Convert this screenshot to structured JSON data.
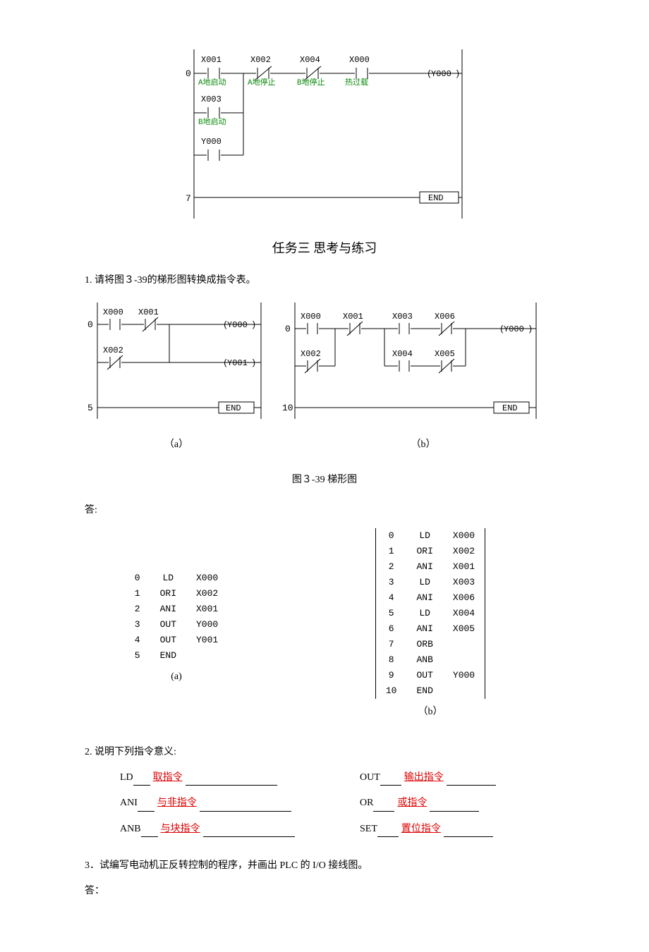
{
  "colors": {
    "green": "#0a8a0a",
    "red": "#d00000",
    "text": "#000000",
    "bg": "#ffffff",
    "line": "#000000"
  },
  "topDiagram": {
    "contacts": [
      {
        "label": "X001",
        "sub": "A地启动",
        "type": "NO"
      },
      {
        "label": "X002",
        "sub": "A地停止",
        "type": "NC"
      },
      {
        "label": "X004",
        "sub": "B地停止",
        "type": "NC"
      },
      {
        "label": "X000",
        "sub": "热过载",
        "type": "NO"
      }
    ],
    "outCoil": "Y000",
    "branches": [
      {
        "label": "X003",
        "sub": "B地启动",
        "type": "NO"
      },
      {
        "label": "Y000",
        "sub": "",
        "type": "NO"
      }
    ],
    "endLabel": "END",
    "rungLabels": [
      "0",
      "7"
    ],
    "title": "任务三    思考与练习"
  },
  "q1": {
    "text": "1. 请将图３-39的梯形图转换成指令表。",
    "figCaption": "图３-39  梯形图"
  },
  "diagA": {
    "contacts": {
      "r0": [
        "X000",
        "X001"
      ],
      "r1": [
        "X002"
      ]
    },
    "types": {
      "r0": [
        "NO",
        "NC"
      ],
      "r1": [
        "NC"
      ]
    },
    "coils": [
      "Y000",
      "Y001"
    ],
    "end": "END",
    "rungs": [
      "0",
      "5"
    ],
    "label": "（a）"
  },
  "diagB": {
    "top": [
      "X000",
      "X001",
      "X003",
      "X006"
    ],
    "topTypes": [
      "NO",
      "NC",
      "NO",
      "NC"
    ],
    "bot": [
      "X002",
      "X004",
      "X005"
    ],
    "botTypes": [
      "NC",
      "NO",
      "NC"
    ],
    "coil": "Y000",
    "end": "END",
    "rungs": [
      "0",
      "10"
    ],
    "label": "（b）"
  },
  "answerLabel": "答:",
  "tableA": {
    "rows": [
      [
        "0",
        "LD",
        "X000"
      ],
      [
        "1",
        "ORI",
        "X002"
      ],
      [
        "2",
        "ANI",
        "X001"
      ],
      [
        "3",
        "OUT",
        "Y000"
      ],
      [
        "4",
        "OUT",
        "Y001"
      ],
      [
        "5",
        "END",
        ""
      ]
    ],
    "label": "(a)"
  },
  "tableB": {
    "rows": [
      [
        "0",
        "LD",
        "X000"
      ],
      [
        "1",
        "ORI",
        "X002"
      ],
      [
        "2",
        "ANI",
        "X001"
      ],
      [
        "3",
        "LD",
        "X003"
      ],
      [
        "4",
        "ANI",
        "X006"
      ],
      [
        "5",
        "LD",
        "X004"
      ],
      [
        "6",
        "ANI",
        "X005"
      ],
      [
        "7",
        "ORB",
        ""
      ],
      [
        "8",
        "ANB",
        ""
      ],
      [
        "9",
        "OUT",
        "Y000"
      ],
      [
        "10",
        "END",
        ""
      ]
    ],
    "label": "（b）"
  },
  "q2": {
    "prompt": "2.    说明下列指令意义:",
    "defs": [
      {
        "name": "LD",
        "ans": "取指令",
        "name2": "OUT",
        "ans2": "输出指令"
      },
      {
        "name": "ANI",
        "ans": "与非指令",
        "name2": "OR",
        "ans2": "或指令"
      },
      {
        "name": "ANB",
        "ans": "与块指令",
        "name2": "SET",
        "ans2": "置位指令"
      }
    ]
  },
  "q3": {
    "line1": "3．试编写电动机正反转控制的程序，并画出 PLC 的 I/O 接线图。",
    "line2": "答："
  }
}
